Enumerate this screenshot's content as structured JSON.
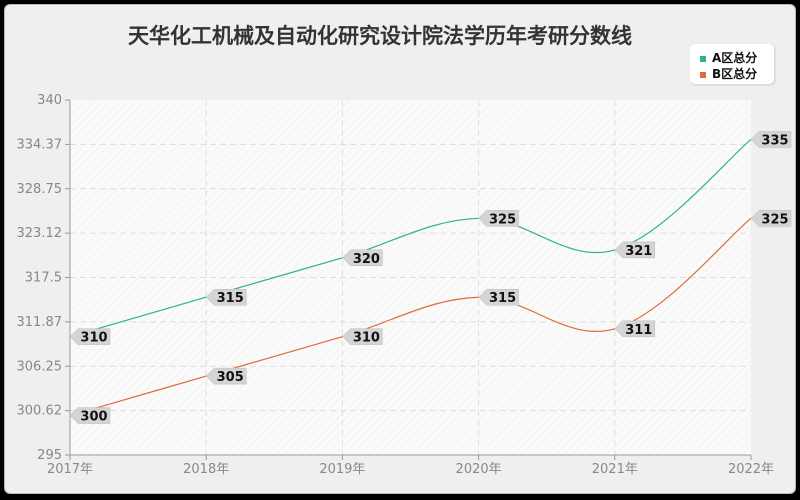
{
  "chart_data": {
    "type": "line",
    "title": "天华化工机械及自动化研究设计院法学历年考研分数线",
    "categories": [
      "2017年",
      "2018年",
      "2019年",
      "2020年",
      "2021年",
      "2022年"
    ],
    "series": [
      {
        "name": "A区总分",
        "color": "#2bb58a",
        "values": [
          310,
          315,
          320,
          325,
          321,
          335
        ]
      },
      {
        "name": "B区总分",
        "color": "#e06a3b",
        "values": [
          300,
          305,
          310,
          315,
          311,
          325
        ]
      }
    ],
    "yticks": [
      "340",
      "334.37",
      "328.75",
      "323.12",
      "317.5",
      "311.87",
      "306.25",
      "300.62",
      "295"
    ],
    "ylim": [
      295,
      340
    ],
    "xlabel": "",
    "ylabel": "",
    "grid": true,
    "legend_position": "top-right"
  },
  "legend": {
    "a": "A区总分",
    "b": "B区总分",
    "a_color": "#2bb58a",
    "b_color": "#e06a3b"
  }
}
